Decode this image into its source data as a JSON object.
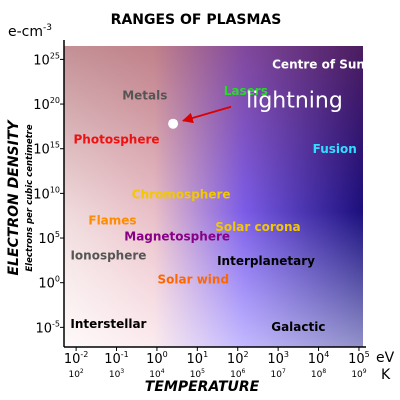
{
  "chart_data": {
    "type": "scatter",
    "title": "RANGES OF PLASMAS",
    "xlabel": "TEMPERATURE",
    "ylabel": "ELECTRON DENSITY",
    "ysublabel": "Electrons per cubic centimetre",
    "y_unit": "e-cm",
    "y_unit_power": "-3",
    "x_unit_top": "eV",
    "x_unit_bottom": "K",
    "x_log_scale": true,
    "y_log_scale": true,
    "xlim_eV_exp": [
      -2.3,
      5.1
    ],
    "ylim_exp": [
      -7.2,
      26.5
    ],
    "x_ticks_eV": [
      {
        "base": "10",
        "exp": "-2",
        "exp_val": -2
      },
      {
        "base": "10",
        "exp": "-1",
        "exp_val": -1
      },
      {
        "base": "10",
        "exp": "0",
        "exp_val": 0
      },
      {
        "base": "10",
        "exp": "1",
        "exp_val": 1
      },
      {
        "base": "10",
        "exp": "2",
        "exp_val": 2
      },
      {
        "base": "10",
        "exp": "3",
        "exp_val": 3
      },
      {
        "base": "10",
        "exp": "4",
        "exp_val": 4
      },
      {
        "base": "10",
        "exp": "5",
        "exp_val": 5
      }
    ],
    "x_ticks_K": [
      {
        "base": "10",
        "exp": "2"
      },
      {
        "base": "10",
        "exp": "3"
      },
      {
        "base": "10",
        "exp": "4"
      },
      {
        "base": "10",
        "exp": "5"
      },
      {
        "base": "10",
        "exp": "6"
      },
      {
        "base": "10",
        "exp": "7"
      },
      {
        "base": "10",
        "exp": "8"
      },
      {
        "base": "10",
        "exp": "9"
      }
    ],
    "y_ticks": [
      {
        "base": "10",
        "exp": "25",
        "exp_val": 25
      },
      {
        "base": "10",
        "exp": "20",
        "exp_val": 20
      },
      {
        "base": "10",
        "exp": "15",
        "exp_val": 15
      },
      {
        "base": "10",
        "exp": "10",
        "exp_val": 10
      },
      {
        "base": "10",
        "exp": "5",
        "exp_val": 5
      },
      {
        "base": "10",
        "exp": "0",
        "exp_val": 0
      },
      {
        "base": "10",
        "exp": "-5",
        "exp_val": -5
      }
    ],
    "regions": [
      {
        "name": "Centre of Sun",
        "x_exp": 4.0,
        "y_exp": 24.0,
        "color": "#ffffff"
      },
      {
        "name": "Lasers",
        "x_exp": 2.2,
        "y_exp": 21.0,
        "color": "#22dd22"
      },
      {
        "name": "Metals",
        "x_exp": -0.3,
        "y_exp": 20.5,
        "color": "#555555"
      },
      {
        "name": "Photosphere",
        "x_exp": -1.0,
        "y_exp": 15.6,
        "color": "#ee1111"
      },
      {
        "name": "Fusion",
        "x_exp": 4.4,
        "y_exp": 14.5,
        "color": "#33ddff"
      },
      {
        "name": "Chromosphere",
        "x_exp": 0.6,
        "y_exp": 9.4,
        "color": "#f2c800"
      },
      {
        "name": "Flames",
        "x_exp": -1.1,
        "y_exp": 6.5,
        "color": "#ff8c00"
      },
      {
        "name": "Solar corona",
        "x_exp": 2.5,
        "y_exp": 5.8,
        "color": "#f2c800"
      },
      {
        "name": "Magnetosphere",
        "x_exp": 0.5,
        "y_exp": 4.7,
        "color": "#880088"
      },
      {
        "name": "Ionosphere",
        "x_exp": -1.2,
        "y_exp": 2.6,
        "color": "#555555"
      },
      {
        "name": "Interplanetary",
        "x_exp": 2.7,
        "y_exp": 2.0,
        "color": "#000000"
      },
      {
        "name": "Solar wind",
        "x_exp": 0.9,
        "y_exp": -0.1,
        "color": "#ff6600"
      },
      {
        "name": "Interstellar",
        "x_exp": -1.2,
        "y_exp": -5.1,
        "color": "#000000"
      },
      {
        "name": "Galactic",
        "x_exp": 3.5,
        "y_exp": -5.4,
        "color": "#000000"
      }
    ],
    "highlight": {
      "label": "lightning",
      "x_exp": 0.4,
      "y_exp": 17.8,
      "label_color": "#ffffff",
      "arrow_color": "#dd0000"
    }
  }
}
